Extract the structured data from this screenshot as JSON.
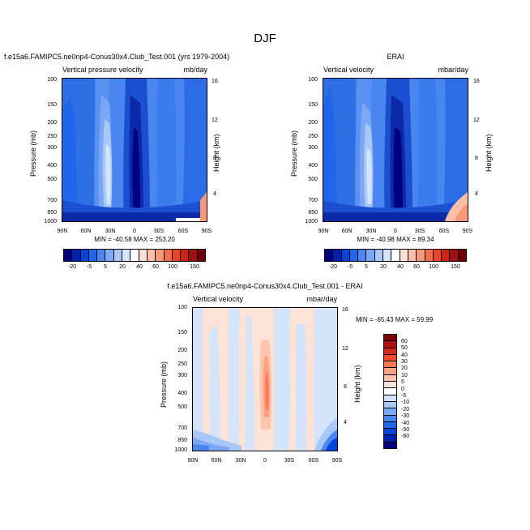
{
  "figure_title": "DJF",
  "panels": {
    "p1": {
      "title": "f.e15a6.FAMIPC5.ne0np4-Conus30x4.Club_Test.001 (yrs 1979-2004)",
      "left_label": "Vertical pressure velocity",
      "right_label": "mb/day",
      "stats": "MIN = -40.58   MAX = 253.20"
    },
    "p2": {
      "title": "ERAI",
      "left_label": "Vertical velocity",
      "right_label": "mbar/day",
      "stats": "MIN = -40.98   MAX =  89.34"
    },
    "p3": {
      "title": "f.e15a6.FAMIPC5.ne0np4-Conus30x4.Club_Test.001 - ERAI",
      "left_label": "Vertical velocity",
      "right_label": "mbar/day",
      "stats": "MIN = -65.43   MAX =  59.99"
    }
  },
  "axes": {
    "ylabel": "Pressure (mb)",
    "ylabel_right": "Height (km)",
    "pressure_ticks": [
      "100",
      "150",
      "200",
      "250",
      "300",
      "400",
      "500",
      "700",
      "850",
      "1000"
    ],
    "height_ticks": [
      "16",
      "12",
      "8",
      "4"
    ],
    "lat_ticks": [
      "90N",
      "60N",
      "30N",
      "0",
      "30S",
      "60S",
      "90S"
    ]
  },
  "colorbar_top": {
    "labels": [
      "-20",
      "-5",
      "5",
      "20",
      "40",
      "60",
      "100",
      "150"
    ],
    "colors": [
      "#000080",
      "#0020b0",
      "#0045d8",
      "#2166ea",
      "#4a86f0",
      "#7aa8f5",
      "#a9c8f8",
      "#d4e4fb",
      "#ffffff",
      "#fde0d2",
      "#fbbfa8",
      "#f89878",
      "#f26e4a",
      "#e8452a",
      "#cc2418",
      "#a01010",
      "#6e0000"
    ]
  },
  "colorbar_diff": {
    "labels": [
      "60",
      "50",
      "40",
      "30",
      "20",
      "10",
      "5",
      "0",
      "-5",
      "-10",
      "-20",
      "-30",
      "-40",
      "-50",
      "-60"
    ],
    "colors": [
      "#800000",
      "#b01010",
      "#d82a1a",
      "#ef4b2c",
      "#f87a55",
      "#fca283",
      "#fdc4ae",
      "#fde3d5",
      "#ffffff",
      "#d4e4fb",
      "#a9c8f8",
      "#7aa8f5",
      "#4a86f0",
      "#2166ea",
      "#0045d8",
      "#0020b0",
      "#000080"
    ]
  },
  "chart_data": [
    {
      "type": "heatmap",
      "title": "f.e15a6.FAMIPC5.ne0np4-Conus30x4.Club_Test.001 (yrs 1979-2004)",
      "subtitle_left": "Vertical pressure velocity",
      "units": "mb/day",
      "ylabel": "Pressure (mb)",
      "ylabel_right": "Height (km)",
      "x_ticks": [
        "90N",
        "60N",
        "30N",
        "0",
        "30S",
        "60S",
        "90S"
      ],
      "y_ticks": [
        100,
        150,
        200,
        250,
        300,
        400,
        500,
        700,
        850,
        1000
      ],
      "y_scale": "log",
      "min": -40.58,
      "max": 253.2
    },
    {
      "type": "heatmap",
      "title": "ERAI",
      "subtitle_left": "Vertical velocity",
      "units": "mbar/day",
      "ylabel": "Pressure (mb)",
      "ylabel_right": "Height (km)",
      "x_ticks": [
        "90N",
        "60N",
        "30N",
        "0",
        "30S",
        "60S",
        "90S"
      ],
      "y_ticks": [
        100,
        150,
        200,
        250,
        300,
        400,
        500,
        700,
        850,
        1000
      ],
      "y_scale": "log",
      "min": -40.98,
      "max": 89.34
    },
    {
      "type": "heatmap",
      "title": "f.e15a6.FAMIPC5.ne0np4-Conus30x4.Club_Test.001 - ERAI",
      "subtitle_left": "Vertical velocity",
      "units": "mbar/day",
      "ylabel": "Pressure (mb)",
      "ylabel_right": "Height (km)",
      "x_ticks": [
        "90N",
        "60N",
        "30N",
        "0",
        "30S",
        "60S",
        "90S"
      ],
      "y_ticks": [
        100,
        150,
        200,
        250,
        300,
        400,
        500,
        700,
        850,
        1000
      ],
      "y_scale": "log",
      "min": -65.43,
      "max": 59.99
    }
  ]
}
